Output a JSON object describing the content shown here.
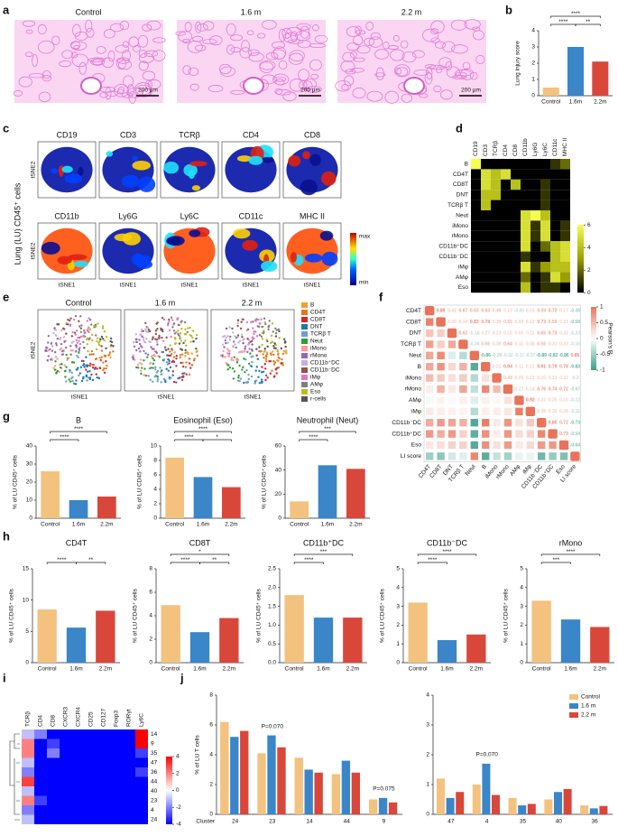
{
  "panel_labels": [
    "a",
    "b",
    "c",
    "d",
    "e",
    "f",
    "g",
    "h",
    "i",
    "j"
  ],
  "histology": {
    "titles": [
      "Control",
      "1.6 m",
      "2.2 m"
    ],
    "scale": "200 μm"
  },
  "tsne_markers": {
    "markers": [
      "CD19",
      "CD3",
      "TCRβ",
      "CD4",
      "CD8",
      "CD11b",
      "Ly6G",
      "Ly6C",
      "CD11c",
      "MHC II"
    ],
    "ylabel": "tSNE2",
    "xlabel": "tSNE1",
    "side_label": "Lung (LU) CD45⁺ cells",
    "colorbar": [
      "max",
      "min"
    ]
  },
  "tsne_groups": {
    "titles": [
      "Control",
      "1.6 m",
      "2.2 m"
    ],
    "ylabel": "tSNE2",
    "xlabel": "tSNE1",
    "legend": [
      "B",
      "CD4T",
      "CD8T",
      "DNT",
      "TCRβ T",
      "Neut",
      "iMono",
      "rMono",
      "CD11b⁺DC",
      "CD11b⁻DC",
      "iMφ",
      "AMφ",
      "Eso",
      "r-cells"
    ],
    "colors": [
      "#f0a030",
      "#e07a20",
      "#d62728",
      "#1f77b4",
      "#6a9fd4",
      "#2ca02c",
      "#ff9896",
      "#9467bd",
      "#c5b0d5",
      "#8c564b",
      "#e377c2",
      "#7f7f7f",
      "#bcbd22",
      "#555555"
    ]
  },
  "chart_data": [
    {
      "type": "bar",
      "ylabel": "Lung injury score",
      "categories": [
        "Control",
        "1.6m",
        "2.2m"
      ],
      "values": [
        0.5,
        3.0,
        2.1
      ],
      "colors": [
        "#f3c27f",
        "#3a86c8",
        "#d9473a"
      ],
      "ylim": [
        0,
        4
      ],
      "yticks": [
        0,
        1,
        2,
        3,
        4
      ],
      "comparisons": [
        {
          "pair": [
            "Control",
            "2.2m"
          ],
          "label": "****"
        },
        {
          "pair": [
            "Control",
            "1.6m"
          ],
          "label": "****"
        },
        {
          "pair": [
            "1.6m",
            "2.2m"
          ],
          "label": "**"
        }
      ]
    },
    {
      "type": "bar",
      "title": "B",
      "ylabel": "% of LU CD45⁺ cells",
      "categories": [
        "Control",
        "1.6m",
        "2.2m"
      ],
      "values": [
        26,
        10,
        12
      ],
      "colors": [
        "#f3c27f",
        "#3a86c8",
        "#d9473a"
      ],
      "ylim": [
        0,
        40
      ],
      "yticks": [
        0,
        10,
        20,
        30,
        40
      ],
      "comparisons": [
        {
          "pair": [
            "Control",
            "2.2m"
          ],
          "label": "****"
        },
        {
          "pair": [
            "Control",
            "1.6m"
          ],
          "label": "****"
        }
      ]
    },
    {
      "type": "bar",
      "title": "Eosinophil (Eso)",
      "ylabel": "% of LU CD45⁺ cells",
      "categories": [
        "Control",
        "1.6m",
        "2.2m"
      ],
      "values": [
        8.4,
        5.7,
        4.3
      ],
      "colors": [
        "#f3c27f",
        "#3a86c8",
        "#d9473a"
      ],
      "ylim": [
        0,
        10
      ],
      "yticks": [
        0,
        2,
        4,
        6,
        8,
        10
      ],
      "comparisons": [
        {
          "pair": [
            "Control",
            "2.2m"
          ],
          "label": "****"
        },
        {
          "pair": [
            "Control",
            "1.6m"
          ],
          "label": "****"
        },
        {
          "pair": [
            "1.6m",
            "2.2m"
          ],
          "label": "*"
        }
      ]
    },
    {
      "type": "bar",
      "title": "Neutrophil (Neut)",
      "ylabel": "% of LU CD45⁺ cells",
      "categories": [
        "Control",
        "1.6m",
        "2.2m"
      ],
      "values": [
        14,
        44,
        41
      ],
      "colors": [
        "#f3c27f",
        "#3a86c8",
        "#d9473a"
      ],
      "ylim": [
        0,
        60
      ],
      "yticks": [
        0,
        20,
        40,
        60
      ],
      "comparisons": [
        {
          "pair": [
            "Control",
            "2.2m"
          ],
          "label": "***"
        },
        {
          "pair": [
            "Control",
            "1.6m"
          ],
          "label": "****"
        }
      ]
    },
    {
      "type": "bar",
      "title": "CD4T",
      "ylabel": "% of LU CD45⁺ cells",
      "categories": [
        "Control",
        "1.6m",
        "2.2m"
      ],
      "values": [
        8.5,
        5.6,
        8.3
      ],
      "colors": [
        "#f3c27f",
        "#3a86c8",
        "#d9473a"
      ],
      "ylim": [
        0,
        15
      ],
      "yticks": [
        0,
        5,
        10,
        15
      ],
      "comparisons": [
        {
          "pair": [
            "Control",
            "1.6m"
          ],
          "label": "****"
        },
        {
          "pair": [
            "1.6m",
            "2.2m"
          ],
          "label": "**"
        }
      ]
    },
    {
      "type": "bar",
      "title": "CD8T",
      "ylabel": "% of LU CD45⁺ cells",
      "categories": [
        "Control",
        "1.6m",
        "2.2m"
      ],
      "values": [
        4.9,
        2.6,
        3.8
      ],
      "colors": [
        "#f3c27f",
        "#3a86c8",
        "#d9473a"
      ],
      "ylim": [
        0,
        8
      ],
      "yticks": [
        0,
        2,
        4,
        6,
        8
      ],
      "comparisons": [
        {
          "pair": [
            "Control",
            "2.2m"
          ],
          "label": "*"
        },
        {
          "pair": [
            "Control",
            "1.6m"
          ],
          "label": "****"
        },
        {
          "pair": [
            "1.6m",
            "2.2m"
          ],
          "label": "**"
        }
      ]
    },
    {
      "type": "bar",
      "title": "CD11b⁺DC",
      "ylabel": "% of LU CD45⁺ cells",
      "categories": [
        "Control",
        "1.6m",
        "2.2m"
      ],
      "values": [
        1.8,
        1.2,
        1.2
      ],
      "colors": [
        "#f3c27f",
        "#3a86c8",
        "#d9473a"
      ],
      "ylim": [
        0,
        2.5
      ],
      "yticks": [
        {
          "value": 0,
          "label": "0.0"
        },
        0.5,
        {
          "value": 1,
          "label": "1.0"
        },
        1.5,
        {
          "value": 2,
          "label": "2.0"
        },
        2.5
      ],
      "comparisons": [
        {
          "pair": [
            "Control",
            "2.2m"
          ],
          "label": "***"
        },
        {
          "pair": [
            "Control",
            "1.6m"
          ],
          "label": "****"
        }
      ]
    },
    {
      "type": "bar",
      "title": "CD11b⁻DC",
      "ylabel": "% of LU CD45⁺ cells",
      "categories": [
        "Control",
        "1.6m",
        "2.2m"
      ],
      "values": [
        3.2,
        1.2,
        1.5
      ],
      "colors": [
        "#f3c27f",
        "#3a86c8",
        "#d9473a"
      ],
      "ylim": [
        0,
        5
      ],
      "yticks": [
        0,
        1,
        2,
        3,
        4,
        5
      ],
      "comparisons": [
        {
          "pair": [
            "Control",
            "2.2m"
          ],
          "label": "****"
        },
        {
          "pair": [
            "Control",
            "1.6m"
          ],
          "label": "****"
        }
      ]
    },
    {
      "type": "bar",
      "title": "rMono",
      "ylabel": "% of LU CD45⁺ cells",
      "categories": [
        "Control",
        "1.6m",
        "2.2m"
      ],
      "values": [
        3.3,
        2.3,
        1.9
      ],
      "colors": [
        "#f3c27f",
        "#3a86c8",
        "#d9473a"
      ],
      "ylim": [
        0,
        5
      ],
      "yticks": [
        0,
        1,
        2,
        3,
        4,
        5
      ],
      "comparisons": [
        {
          "pair": [
            "Control",
            "2.2m"
          ],
          "label": "****"
        },
        {
          "pair": [
            "Control",
            "1.6m"
          ],
          "label": "***"
        }
      ]
    },
    {
      "type": "grouped_bar",
      "ylabel": "% of LU T cells",
      "xlabel": "Cluster",
      "categories": [
        "24",
        "23",
        "14",
        "44",
        "9"
      ],
      "ylim": [
        0,
        8
      ],
      "yticks": [
        0,
        2,
        4,
        6,
        8
      ],
      "series": [
        {
          "name": "Control",
          "color": "#f3c27f",
          "values": [
            6.2,
            4.1,
            3.8,
            2.7,
            1.0
          ]
        },
        {
          "name": "1.6 m",
          "color": "#3a86c8",
          "values": [
            5.2,
            5.3,
            3.0,
            3.6,
            1.1
          ]
        },
        {
          "name": "2.2 m",
          "color": "#d9473a",
          "values": [
            5.6,
            4.5,
            2.8,
            2.8,
            0.8
          ]
        }
      ],
      "annotations": [
        {
          "at": "23",
          "text": "P=0.070"
        },
        {
          "at": "9",
          "text": "P=0.075"
        }
      ]
    },
    {
      "type": "grouped_bar",
      "categories": [
        "47",
        "4",
        "35",
        "40",
        "36"
      ],
      "ylim": [
        0,
        4
      ],
      "yticks": [
        0,
        1,
        2,
        3,
        4
      ],
      "legend": "upper right",
      "series": [
        {
          "name": "Control",
          "color": "#f3c27f",
          "values": [
            1.2,
            1.0,
            0.55,
            0.5,
            0.3
          ]
        },
        {
          "name": "1.6 m",
          "color": "#3a86c8",
          "values": [
            0.55,
            1.7,
            0.3,
            0.75,
            0.2
          ]
        },
        {
          "name": "2.2 m",
          "color": "#d9473a",
          "values": [
            0.75,
            0.65,
            0.35,
            0.85,
            0.28
          ]
        }
      ],
      "annotations": [
        {
          "at": "4",
          "text": "P=0.070"
        }
      ]
    },
    {
      "type": "heatmap",
      "columns": [
        "CD19",
        "CD3",
        "TCRβ",
        "CD4",
        "CD8",
        "CD11b",
        "Ly6G",
        "Ly6C",
        "CD11c",
        "MHC II"
      ],
      "rows": [
        "B",
        "CD4T",
        "CD8T",
        "DNT",
        "TCRβ T",
        "Neut",
        "iMono",
        "rMono",
        "CD11b⁺DC",
        "CD11b⁻DC",
        "iMφ",
        "AMφ",
        "Eso"
      ],
      "values": [
        [
          6,
          0,
          0,
          0,
          0,
          0,
          0,
          0,
          1,
          2
        ],
        [
          0,
          5,
          4,
          5,
          0,
          0,
          0,
          0,
          0,
          0
        ],
        [
          0,
          5,
          4,
          0,
          4,
          0,
          0,
          1,
          0,
          0
        ],
        [
          0,
          4,
          4,
          0,
          0,
          0,
          0,
          1,
          0,
          0
        ],
        [
          0,
          4,
          0,
          0,
          0,
          0,
          0,
          1,
          0,
          0
        ],
        [
          0,
          0,
          0,
          0,
          0,
          5,
          6,
          4,
          0,
          0
        ],
        [
          0,
          0,
          0,
          0,
          0,
          5,
          1,
          5,
          0,
          1
        ],
        [
          0,
          0,
          0,
          0,
          0,
          5,
          1,
          5,
          0,
          1
        ],
        [
          0,
          0,
          0,
          0,
          0,
          5,
          0,
          2,
          4,
          5
        ],
        [
          0,
          0,
          0,
          0,
          0,
          1,
          0,
          0,
          4,
          5
        ],
        [
          0,
          0,
          0,
          0,
          0,
          5,
          1,
          3,
          4,
          4
        ],
        [
          0,
          0,
          0,
          0,
          0,
          2,
          0,
          1,
          5,
          3
        ],
        [
          0,
          0,
          0,
          0,
          0,
          4,
          0,
          1,
          1,
          0
        ]
      ],
      "clim": [
        0,
        6
      ],
      "cticks": [
        0,
        2,
        4,
        6
      ]
    },
    {
      "type": "correlation",
      "labels": [
        "CD4T",
        "CD8T",
        "DNT",
        "TCRβ T",
        "Neut",
        "B",
        "iMono",
        "rMono",
        "AMφ",
        "iMφ",
        "CD11b⁻DC",
        "CD11b⁺DC",
        "Eso",
        "LI score"
      ],
      "values": [
        [
          0.89,
          0.42,
          0.67,
          0.63,
          0.63,
          0.48,
          0.12,
          -0.05,
          0.15,
          0.59,
          0.72,
          0.17,
          -0.48
        ],
        [
          0.36,
          0.34,
          0.83,
          0.78,
          0.38,
          0.55,
          0.08,
          0.12,
          0.73,
          0.59,
          0.23,
          -0.58
        ],
        [
          0.62,
          -0.18,
          0.27,
          0.23,
          0.15,
          0.05,
          0.11,
          0.65,
          0.73,
          0.32,
          -0.23
        ],
        [
          -0.36,
          0.56,
          0.38,
          0.64,
          0.11,
          0.08,
          0.56,
          0.33,
          0.33,
          -0.16
        ],
        [
          -0.86,
          -0.39,
          -0.32,
          -0.17,
          -0.37,
          -0.89,
          -0.82,
          -0.86,
          0.85
        ],
        [
          0.21,
          0.84,
          0.11,
          0.12,
          0.91,
          0.79,
          0.78,
          -0.83
        ],
        [
          0.48,
          0.05,
          0.12,
          0.15,
          0.13,
          0.22,
          -0.3
        ],
        [
          0.21,
          0.18,
          0.76,
          0.74,
          0.71,
          -0.47
        ],
        [
          0.92,
          0.21,
          0.25,
          0.15,
          -0.12
        ],
        [
          0.38,
          0.32,
          0.26,
          -0.11
        ],
        [
          0.85,
          0.72,
          -0.73
        ],
        [
          0.73,
          -0.54
        ],
        [
          -0.64
        ]
      ],
      "clim": [
        -1,
        1
      ],
      "cticks": [
        1,
        0.5,
        0,
        -0.5,
        -1
      ],
      "clabel": "Pearson's R"
    },
    {
      "type": "heatmap",
      "columns": [
        "TCRβ",
        "CD4",
        "CD8",
        "CXCR3",
        "CXCR4",
        "CD25",
        "CD127",
        "Foxp3",
        "RORγt",
        "Ly6C"
      ],
      "rows": [
        "14",
        "9",
        "35",
        "47",
        "36",
        "44",
        "40",
        "23",
        "4",
        "24"
      ],
      "values": [
        [
          -1,
          -2,
          -4,
          -4,
          -4,
          -4,
          -4,
          -4,
          -4,
          4
        ],
        [
          2,
          -4,
          -3,
          -4,
          -4,
          -4,
          -4,
          -4,
          -4,
          4
        ],
        [
          2,
          -4,
          -2,
          -4,
          -4,
          -4,
          -4,
          -4,
          -4,
          -3
        ],
        [
          -1,
          -4,
          -4,
          -4,
          -4,
          -4,
          -4,
          -4,
          -4,
          -4
        ],
        [
          -2,
          -4,
          -4,
          -4,
          -4,
          -4,
          -4,
          -4,
          -4,
          -3
        ],
        [
          3,
          -4,
          -4,
          -4,
          -4,
          -4,
          -4,
          -4,
          -4,
          -4
        ],
        [
          -1,
          -4,
          -4,
          -4,
          -4,
          -4,
          -4,
          -4,
          -4,
          -4
        ],
        [
          2,
          -3,
          -4,
          -4,
          -4,
          -4,
          -4,
          -4,
          -4,
          -4
        ],
        [
          -2,
          -4,
          -4,
          -4,
          -4,
          -4,
          -4,
          -4,
          -4,
          -4
        ],
        [
          -1,
          -4,
          -4,
          -4,
          -4,
          -4,
          -4,
          -4,
          -4,
          -4
        ]
      ],
      "clim": [
        -4,
        4
      ],
      "cticks": [
        4,
        2,
        0,
        -2,
        -4
      ]
    }
  ]
}
